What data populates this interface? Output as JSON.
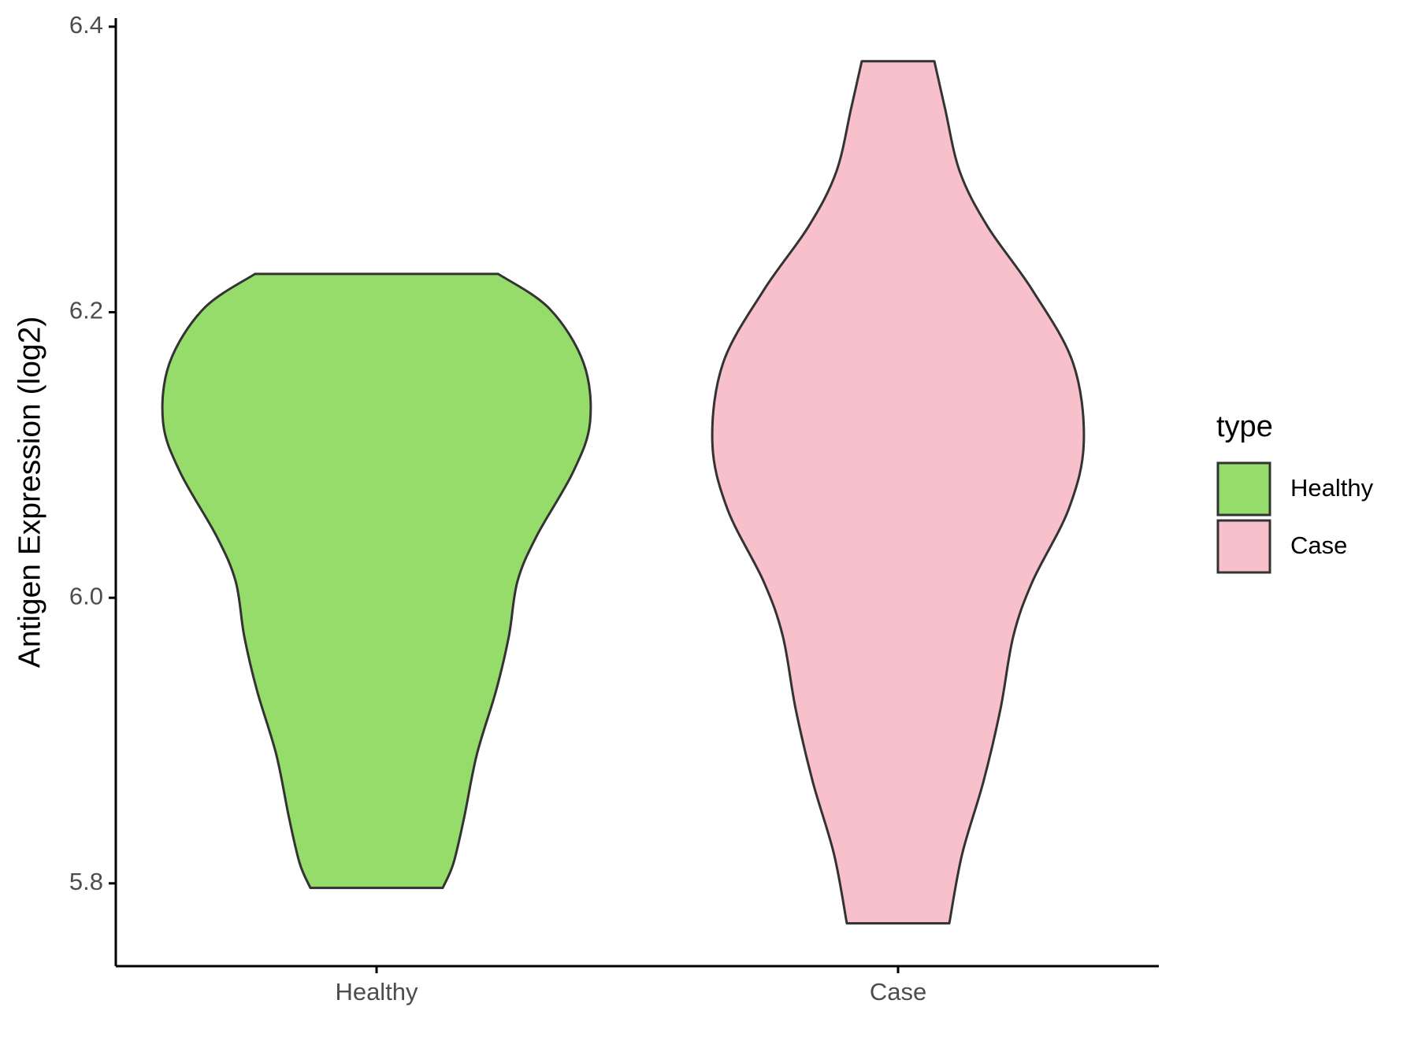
{
  "chart_data": {
    "type": "violin",
    "y_label": "Antigen Expression (log2)",
    "categories": [
      "Healthy",
      "Case"
    ],
    "legend_title": "type",
    "legend_position": "right",
    "ylim": [
      5.742,
      6.406
    ],
    "yticks": [
      {
        "value": 5.8,
        "label": "5.8"
      },
      {
        "value": 6.0,
        "label": "6.0"
      },
      {
        "value": 6.2,
        "label": "6.2"
      },
      {
        "value": 6.4,
        "label": "6.4"
      }
    ],
    "series": [
      {
        "name": "Healthy",
        "color": "#95dc6b",
        "y": [
          6.2268,
          6.2025,
          6.1643,
          6.1229,
          6.0879,
          6.0433,
          6.0115,
          5.9732,
          5.935,
          5.8904,
          5.8459,
          5.814,
          5.7968
        ],
        "density": [
          0.57,
          0.81,
          0.97,
          1.0,
          0.92,
          0.75,
          0.66,
          0.62,
          0.56,
          0.47,
          0.41,
          0.36,
          0.31
        ]
      },
      {
        "name": "Case",
        "color": "#f7c0cb",
        "y": [
          6.3758,
          6.3427,
          6.2981,
          6.2599,
          6.2153,
          6.1643,
          6.1089,
          6.0624,
          6.0115,
          5.9732,
          5.9223,
          5.8713,
          5.8204,
          5.772
        ],
        "density": [
          0.17,
          0.22,
          0.29,
          0.42,
          0.63,
          0.82,
          0.87,
          0.8,
          0.63,
          0.54,
          0.48,
          0.4,
          0.3,
          0.24
        ]
      }
    ]
  }
}
